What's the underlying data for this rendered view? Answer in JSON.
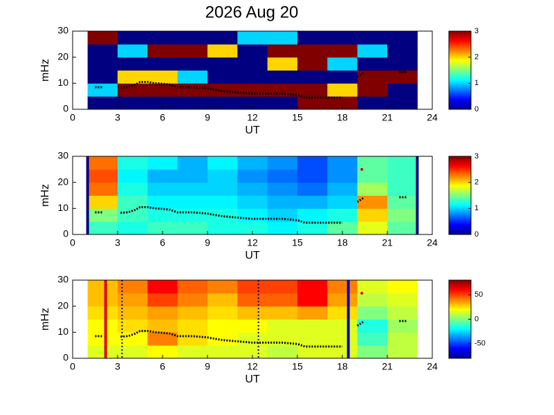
{
  "chart_data": [
    {
      "type": "heatmap",
      "title": "2026 Aug 20",
      "xlabel": "UT",
      "ylabel": "mHz",
      "xlim": [
        0,
        24
      ],
      "xticks": [
        0,
        3,
        6,
        9,
        12,
        15,
        18,
        21,
        24
      ],
      "ylim": [
        0,
        30
      ],
      "yticks": [
        0,
        10,
        20,
        30
      ],
      "xbins": [
        1,
        3,
        5,
        7,
        9,
        11,
        13,
        15,
        17,
        19,
        21,
        23
      ],
      "ybins": [
        0,
        5,
        10,
        15,
        20,
        25,
        30
      ],
      "values": [
        [
          0,
          0,
          0,
          0,
          0,
          0,
          0,
          3,
          3,
          0,
          0
        ],
        [
          1,
          3,
          3,
          3,
          3,
          3,
          3,
          3,
          2,
          3,
          0
        ],
        [
          0,
          2,
          2,
          1,
          0,
          0,
          0,
          0,
          0,
          3,
          3
        ],
        [
          0,
          0,
          0,
          0,
          0,
          0,
          2,
          3,
          1,
          0,
          0
        ],
        [
          0,
          1,
          3,
          3,
          2,
          0,
          3,
          3,
          3,
          1,
          0
        ],
        [
          3,
          0,
          0,
          0,
          0,
          1,
          1,
          0,
          0,
          0,
          0
        ]
      ],
      "clim": [
        0,
        3
      ],
      "cticks": [
        0,
        1,
        2,
        3
      ],
      "trace": {
        "color": "#000000",
        "x": [
          1.5,
          2.0,
          null,
          3.2,
          3.7,
          4.2,
          4.5,
          5.0,
          5.5,
          6.0,
          6.5,
          7.0,
          8.0,
          9.0,
          10.0,
          11.0,
          12.0,
          13.0,
          14.0,
          15.0,
          15.5,
          16.5,
          17.5,
          18.0,
          null,
          19.0,
          19.4,
          null,
          21.8,
          22.3
        ],
        "y": [
          8.5,
          8.5,
          null,
          8.3,
          8.5,
          9.5,
          10.5,
          10.5,
          10,
          9.8,
          9.5,
          8.5,
          8.5,
          8,
          7,
          6.5,
          6,
          6,
          6,
          5.5,
          4.5,
          4.5,
          4.5,
          4.5,
          null,
          12.5,
          14,
          null,
          14.3,
          14.3
        ]
      }
    },
    {
      "type": "heatmap",
      "xlabel": "UT",
      "ylabel": "mHz",
      "xlim": [
        0,
        24
      ],
      "xticks": [
        0,
        3,
        6,
        9,
        12,
        15,
        18,
        21,
        24
      ],
      "ylim": [
        0,
        30
      ],
      "yticks": [
        0,
        10,
        20,
        30
      ],
      "xbins": [
        1,
        3,
        5,
        7,
        9,
        11,
        13,
        15,
        17,
        19,
        21,
        23
      ],
      "ybins": [
        0,
        5,
        10,
        15,
        20,
        25,
        30
      ],
      "values": [
        [
          1.3,
          1.2,
          1.3,
          1.3,
          1.2,
          1.2,
          1.1,
          1.2,
          1.4,
          1.8,
          1.4
        ],
        [
          1.5,
          1.3,
          1.2,
          1.2,
          1.2,
          1.1,
          1.0,
          1.1,
          1.2,
          2.0,
          1.5
        ],
        [
          2.0,
          1.3,
          1.1,
          1.1,
          1.1,
          1.0,
          0.9,
          0.9,
          1.0,
          2.2,
          1.4
        ],
        [
          2.3,
          1.2,
          1.0,
          1.0,
          1.0,
          0.9,
          0.8,
          0.7,
          0.9,
          1.6,
          1.3
        ],
        [
          2.4,
          1.1,
          0.9,
          0.9,
          1.0,
          0.8,
          0.7,
          0.6,
          0.8,
          1.4,
          1.3
        ],
        [
          2.3,
          1.2,
          1.1,
          0.9,
          1.1,
          0.9,
          0.8,
          0.6,
          0.8,
          1.4,
          1.3
        ]
      ],
      "clim": [
        0,
        3
      ],
      "cticks": [
        0,
        1,
        2,
        3
      ],
      "vlines": [
        {
          "x": 1,
          "color": "#000080",
          "style": "solid"
        },
        {
          "x": 23,
          "color": "#000080",
          "style": "solid"
        }
      ],
      "trace": {
        "color": "#000000",
        "x": [
          1.5,
          2.0,
          null,
          3.2,
          3.7,
          4.2,
          4.5,
          5.0,
          5.5,
          6.0,
          6.5,
          7.0,
          8.0,
          9.0,
          10.0,
          11.0,
          12.0,
          13.0,
          14.0,
          15.0,
          15.5,
          16.5,
          17.5,
          18.0,
          null,
          19.0,
          19.4,
          null,
          21.8,
          22.3
        ],
        "y": [
          8.5,
          8.5,
          null,
          8.3,
          8.5,
          9.5,
          10.5,
          10.5,
          10,
          9.8,
          9.5,
          8.5,
          8.5,
          8,
          7,
          6.5,
          6,
          6,
          6,
          5.5,
          4.5,
          4.5,
          4.5,
          4.5,
          null,
          12.5,
          14,
          null,
          14.3,
          14.3
        ]
      },
      "points": {
        "color": "#dd0000",
        "x": [
          19.3
        ],
        "y": [
          25
        ]
      }
    },
    {
      "type": "heatmap",
      "xlabel": "UT",
      "ylabel": "mHz",
      "xlim": [
        0,
        24
      ],
      "xticks": [
        0,
        3,
        6,
        9,
        12,
        15,
        18,
        21,
        24
      ],
      "ylim": [
        0,
        30
      ],
      "yticks": [
        0,
        10,
        20,
        30
      ],
      "xbins": [
        1,
        3,
        5,
        7,
        9,
        11,
        13,
        15,
        17,
        19,
        21,
        23
      ],
      "ybins": [
        0,
        5,
        10,
        15,
        20,
        25,
        30
      ],
      "values": [
        [
          15,
          15,
          20,
          15,
          15,
          15,
          10,
          15,
          15,
          0,
          10
        ],
        [
          20,
          20,
          40,
          25,
          20,
          15,
          15,
          15,
          15,
          -10,
          10
        ],
        [
          20,
          25,
          30,
          25,
          20,
          20,
          15,
          15,
          15,
          -15,
          5
        ],
        [
          25,
          30,
          35,
          30,
          25,
          30,
          30,
          35,
          25,
          0,
          10
        ],
        [
          30,
          35,
          50,
          40,
          30,
          45,
          45,
          60,
          35,
          10,
          15
        ],
        [
          30,
          40,
          60,
          45,
          40,
          50,
          50,
          60,
          40,
          15,
          20
        ]
      ],
      "clim": [
        -80,
        80
      ],
      "cticks": [
        -50,
        0,
        50
      ],
      "vlines": [
        {
          "x": 2.2,
          "color": "#dd0000",
          "style": "solid"
        },
        {
          "x": 3.3,
          "color": "#000080",
          "style": "dotted"
        },
        {
          "x": 12.4,
          "color": "#000080",
          "style": "dotted"
        },
        {
          "x": 18.4,
          "color": "#0000cc",
          "style": "solid"
        }
      ],
      "trace": {
        "color": "#000000",
        "x": [
          1.5,
          2.0,
          null,
          3.2,
          3.7,
          4.2,
          4.5,
          5.0,
          5.5,
          6.0,
          6.5,
          7.0,
          8.0,
          9.0,
          10.0,
          11.0,
          12.0,
          13.0,
          14.0,
          15.0,
          15.5,
          16.5,
          17.5,
          18.0,
          null,
          19.0,
          19.4,
          null,
          21.8,
          22.3
        ],
        "y": [
          8.5,
          8.5,
          null,
          8.3,
          8.5,
          9.5,
          10.5,
          10.5,
          10,
          9.8,
          9.5,
          8.5,
          8.5,
          8,
          7,
          6.5,
          6,
          6,
          6,
          5.5,
          4.5,
          4.5,
          4.5,
          4.5,
          null,
          12.5,
          14,
          null,
          14.3,
          14.3
        ]
      },
      "points": {
        "color": "#dd0000",
        "x": [
          19.3
        ],
        "y": [
          25
        ]
      }
    }
  ]
}
